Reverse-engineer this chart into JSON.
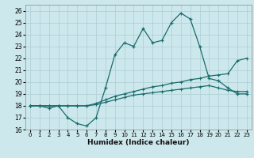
{
  "xlabel": "Humidex (Indice chaleur)",
  "bg_color": "#cce8ec",
  "grid_color": "#aacdd4",
  "line_color": "#1a6b6b",
  "xlim": [
    -0.5,
    23.5
  ],
  "ylim": [
    16,
    26.5
  ],
  "xticks": [
    0,
    1,
    2,
    3,
    4,
    5,
    6,
    7,
    8,
    9,
    10,
    11,
    12,
    13,
    14,
    15,
    16,
    17,
    18,
    19,
    20,
    21,
    22,
    23
  ],
  "yticks": [
    16,
    17,
    18,
    19,
    20,
    21,
    22,
    23,
    24,
    25,
    26
  ],
  "series1_x": [
    0,
    1,
    2,
    3,
    4,
    5,
    6,
    7,
    8,
    9,
    10,
    11,
    12,
    13,
    14,
    15,
    16,
    17,
    18,
    19,
    20,
    21,
    22,
    23
  ],
  "series1_y": [
    18.0,
    18.0,
    17.8,
    18.0,
    17.0,
    16.5,
    16.3,
    17.0,
    19.5,
    22.3,
    23.3,
    23.0,
    24.5,
    23.3,
    23.5,
    25.0,
    25.8,
    25.3,
    23.0,
    20.3,
    20.1,
    19.5,
    19.0,
    19.0
  ],
  "series2_x": [
    0,
    1,
    2,
    3,
    4,
    5,
    6,
    7,
    8,
    9,
    10,
    11,
    12,
    13,
    14,
    15,
    16,
    17,
    18,
    19,
    20,
    21,
    22,
    23
  ],
  "series2_y": [
    18.0,
    18.0,
    18.0,
    18.0,
    18.0,
    18.0,
    18.0,
    18.2,
    18.5,
    18.8,
    19.0,
    19.2,
    19.4,
    19.6,
    19.7,
    19.9,
    20.0,
    20.2,
    20.3,
    20.5,
    20.6,
    20.7,
    21.8,
    22.0
  ],
  "series3_x": [
    0,
    1,
    2,
    3,
    4,
    5,
    6,
    7,
    8,
    9,
    10,
    11,
    12,
    13,
    14,
    15,
    16,
    17,
    18,
    19,
    20,
    21,
    22,
    23
  ],
  "series3_y": [
    18.0,
    18.0,
    18.0,
    18.0,
    18.0,
    18.0,
    18.0,
    18.1,
    18.3,
    18.5,
    18.7,
    18.9,
    19.0,
    19.1,
    19.2,
    19.3,
    19.4,
    19.5,
    19.6,
    19.7,
    19.5,
    19.3,
    19.2,
    19.2
  ]
}
